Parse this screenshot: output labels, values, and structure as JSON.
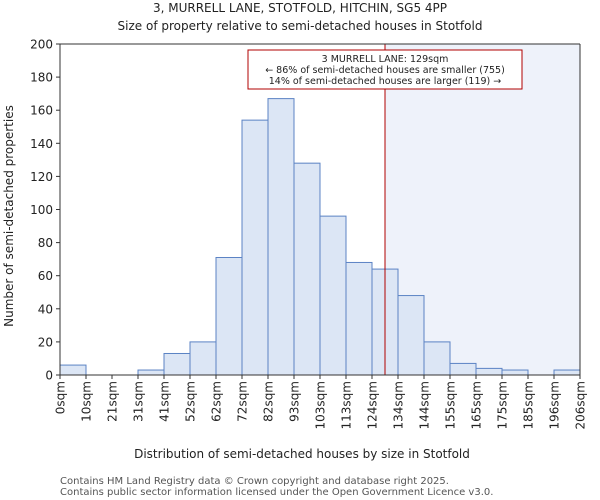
{
  "chart_data": {
    "type": "bar",
    "title": "3, MURRELL LANE, STOTFOLD, HITCHIN, SG5 4PP",
    "subtitle": "Size of property relative to semi-detached houses in Stotfold",
    "xlabel": "Distribution of semi-detached houses by size in Stotfold",
    "ylabel": "Number of semi-detached properties",
    "ylim": [
      0,
      200
    ],
    "yticks": [
      0,
      20,
      40,
      60,
      80,
      100,
      120,
      140,
      160,
      180,
      200
    ],
    "tick_labels": [
      "0sqm",
      "10sqm",
      "21sqm",
      "31sqm",
      "41sqm",
      "52sqm",
      "62sqm",
      "72sqm",
      "82sqm",
      "93sqm",
      "103sqm",
      "113sqm",
      "124sqm",
      "134sqm",
      "144sqm",
      "155sqm",
      "165sqm",
      "175sqm",
      "185sqm",
      "196sqm",
      "206sqm"
    ],
    "values": [
      6,
      0,
      0,
      3,
      13,
      20,
      71,
      154,
      167,
      128,
      96,
      68,
      64,
      48,
      20,
      7,
      4,
      3,
      0,
      3
    ],
    "property_line": {
      "position_bin": 12.5,
      "value_sqm": 129
    },
    "annotation": {
      "line1": "3 MURRELL LANE: 129sqm",
      "line2": "← 86% of semi-detached houses are smaller (755)",
      "line3": "14% of semi-detached houses are larger (119) →"
    },
    "colors": {
      "bar_fill": "#dce6f5",
      "bar_stroke": "#5b83c4",
      "highlight_bg": "#eef2fa",
      "property_line": "#b00000"
    }
  },
  "footer": {
    "line1": "Contains HM Land Registry data © Crown copyright and database right 2025.",
    "line2": "Contains public sector information licensed under the Open Government Licence v3.0."
  }
}
